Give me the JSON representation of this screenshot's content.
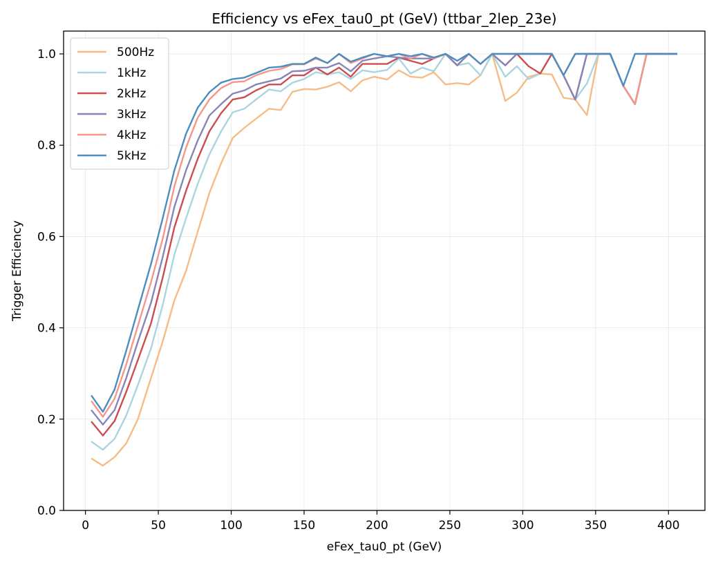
{
  "chart_data": {
    "type": "line",
    "title": "Efficiency vs eFex_tau0_pt (GeV) (ttbar_2lep_23e)",
    "xlabel": "eFex_tau0_pt (GeV)",
    "ylabel": "Trigger Efficiency",
    "xlim": [
      -15,
      425
    ],
    "ylim": [
      0,
      1.05
    ],
    "xticks": [
      0,
      50,
      100,
      150,
      200,
      250,
      300,
      350,
      400
    ],
    "yticks": [
      0.0,
      0.2,
      0.4,
      0.6,
      0.8,
      1.0
    ],
    "xtick_labels": [
      "0",
      "50",
      "100",
      "150",
      "200",
      "250",
      "300",
      "350",
      "400"
    ],
    "ytick_labels": [
      "0.0",
      "0.2",
      "0.4",
      "0.6",
      "0.8",
      "1.0"
    ],
    "grid": true,
    "legend_position": "top-left",
    "x": [
      4,
      12,
      20,
      28,
      36,
      45,
      53,
      61,
      69,
      77,
      85,
      93,
      101,
      109,
      117,
      126,
      134,
      142,
      150,
      158,
      166,
      174,
      182,
      190,
      198,
      207,
      215,
      223,
      231,
      239,
      247,
      255,
      263,
      271,
      279,
      288,
      296,
      304,
      312,
      320,
      328,
      336,
      344,
      352,
      360,
      369,
      377,
      385,
      393,
      401,
      406
    ],
    "series": [
      {
        "name": "500Hz",
        "color": "#f5bd85",
        "values": [
          0.114,
          0.098,
          0.117,
          0.147,
          0.2,
          0.29,
          0.37,
          0.46,
          0.525,
          0.61,
          0.695,
          0.76,
          0.816,
          0.838,
          0.858,
          0.88,
          0.877,
          0.917,
          0.923,
          0.922,
          0.928,
          0.938,
          0.918,
          0.942,
          0.95,
          0.944,
          0.964,
          0.95,
          0.948,
          0.96,
          0.933,
          0.936,
          0.933,
          0.953,
          1.0,
          0.897,
          0.915,
          0.95,
          0.957,
          0.955,
          0.904,
          0.9,
          0.866,
          1.0,
          1.0,
          0.93,
          0.89,
          1.0,
          1.0,
          1.0,
          1.0
        ]
      },
      {
        "name": "1kHz",
        "color": "#aad4e0",
        "values": [
          0.151,
          0.133,
          0.157,
          0.208,
          0.275,
          0.355,
          0.45,
          0.56,
          0.64,
          0.715,
          0.78,
          0.83,
          0.872,
          0.88,
          0.9,
          0.922,
          0.918,
          0.937,
          0.945,
          0.96,
          0.955,
          0.96,
          0.945,
          0.964,
          0.96,
          0.965,
          0.99,
          0.957,
          0.97,
          0.962,
          1.0,
          0.975,
          0.98,
          0.953,
          1.0,
          0.95,
          0.973,
          0.945,
          0.957,
          1.0,
          0.953,
          0.9,
          0.935,
          1.0,
          1.0,
          0.93,
          0.89,
          1.0,
          1.0,
          1.0,
          1.0
        ]
      },
      {
        "name": "2kHz",
        "color": "#cc4d4f",
        "values": [
          0.195,
          0.164,
          0.196,
          0.26,
          0.33,
          0.41,
          0.51,
          0.62,
          0.7,
          0.77,
          0.83,
          0.87,
          0.9,
          0.905,
          0.92,
          0.933,
          0.933,
          0.953,
          0.953,
          0.97,
          0.955,
          0.97,
          0.95,
          0.978,
          0.978,
          0.978,
          0.992,
          0.985,
          0.978,
          0.99,
          1.0,
          0.975,
          1.0,
          0.978,
          1.0,
          0.975,
          1.0,
          0.973,
          0.957,
          1.0,
          0.953,
          0.9,
          1.0,
          1.0,
          1.0,
          0.93,
          0.89,
          1.0,
          1.0,
          1.0,
          1.0
        ]
      },
      {
        "name": "3kHz",
        "color": "#8784b8",
        "values": [
          0.22,
          0.188,
          0.22,
          0.29,
          0.37,
          0.455,
          0.555,
          0.665,
          0.745,
          0.81,
          0.865,
          0.89,
          0.913,
          0.92,
          0.933,
          0.94,
          0.946,
          0.962,
          0.963,
          0.97,
          0.97,
          0.98,
          0.962,
          0.985,
          0.99,
          0.995,
          0.992,
          0.99,
          0.99,
          0.99,
          1.0,
          0.975,
          1.0,
          0.978,
          1.0,
          0.975,
          1.0,
          1.0,
          1.0,
          1.0,
          0.953,
          0.9,
          1.0,
          1.0,
          1.0,
          0.93,
          0.89,
          1.0,
          1.0,
          1.0,
          1.0
        ]
      },
      {
        "name": "4kHz",
        "color": "#f4968c",
        "values": [
          0.24,
          0.205,
          0.245,
          0.32,
          0.405,
          0.5,
          0.595,
          0.71,
          0.795,
          0.86,
          0.9,
          0.925,
          0.938,
          0.94,
          0.953,
          0.963,
          0.967,
          0.977,
          0.977,
          0.99,
          0.98,
          1.0,
          0.98,
          0.99,
          1.0,
          0.995,
          1.0,
          0.99,
          1.0,
          0.99,
          1.0,
          0.985,
          1.0,
          0.978,
          1.0,
          1.0,
          1.0,
          1.0,
          1.0,
          1.0,
          0.953,
          1.0,
          1.0,
          1.0,
          1.0,
          0.93,
          0.89,
          1.0,
          1.0,
          1.0,
          1.0
        ]
      },
      {
        "name": "5kHz",
        "color": "#4c8dbf",
        "values": [
          0.252,
          0.216,
          0.265,
          0.35,
          0.44,
          0.54,
          0.64,
          0.745,
          0.825,
          0.882,
          0.916,
          0.937,
          0.945,
          0.948,
          0.958,
          0.97,
          0.972,
          0.978,
          0.978,
          0.992,
          0.98,
          1.0,
          0.983,
          0.992,
          1.0,
          0.995,
          1.0,
          0.995,
          1.0,
          0.992,
          1.0,
          0.985,
          1.0,
          0.978,
          1.0,
          1.0,
          1.0,
          1.0,
          1.0,
          1.0,
          0.953,
          1.0,
          1.0,
          1.0,
          1.0,
          0.93,
          1.0,
          1.0,
          1.0,
          1.0,
          1.0
        ]
      }
    ]
  }
}
